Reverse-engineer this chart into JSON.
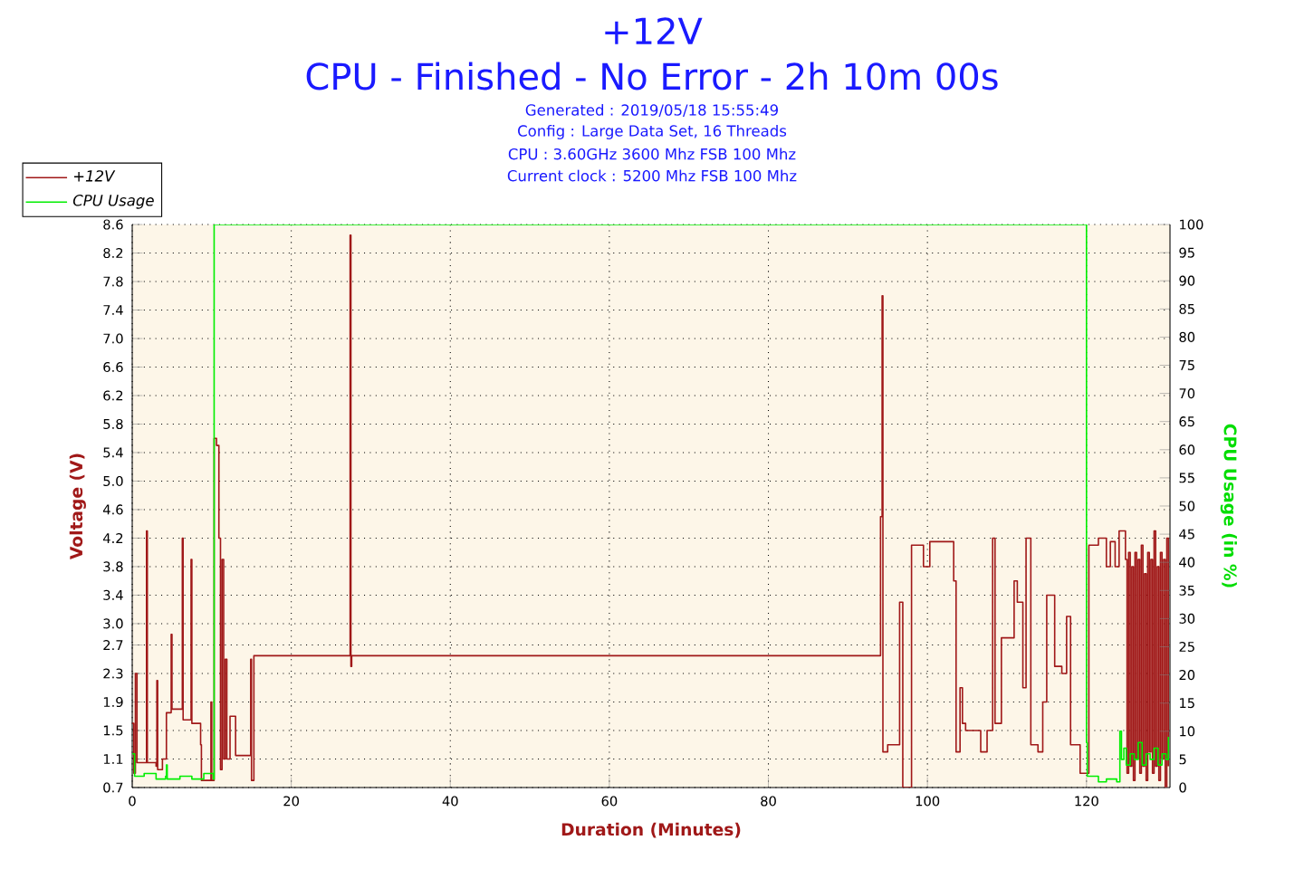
{
  "chart_data": {
    "type": "step",
    "title": "+12V",
    "subtitle": "CPU - Finished - No Error - 2h 10m 00s",
    "annotations": [
      "Generated : 2019/05/18 15:55:49",
      "Config : Large Data Set, 16 Threads",
      "CPU : 3.60GHz 3600 Mhz FSB 100 Mhz",
      "Current clock : 5200 Mhz FSB 100 Mhz"
    ],
    "xlabel": "Duration (Minutes)",
    "ylabel": "Voltage (V)",
    "y2label": "CPU Usage (in %)",
    "xlim": [
      0,
      130.5
    ],
    "xticks": [
      0,
      20,
      40,
      60,
      80,
      100,
      120
    ],
    "ylim": [
      0.7,
      8.6
    ],
    "yticks": [
      0.7,
      1.1,
      1.5,
      1.9,
      2.3,
      2.7,
      {
        "value": 3.0,
        "label": "3.0"
      },
      3.4,
      3.8,
      4.2,
      4.6,
      {
        "value": 5.0,
        "label": "5.0"
      },
      5.4,
      5.8,
      6.2,
      6.6,
      {
        "value": 7.0,
        "label": "7.0"
      },
      7.4,
      7.8,
      8.2,
      8.6
    ],
    "y2lim": [
      0,
      100
    ],
    "y2ticks": [
      0,
      5,
      10,
      15,
      20,
      25,
      30,
      35,
      40,
      45,
      50,
      55,
      60,
      65,
      70,
      75,
      80,
      85,
      90,
      95,
      100
    ],
    "grid": true,
    "legend": "top left",
    "series": [
      {
        "name": "+12V",
        "color": "#a01818",
        "x": [
          0,
          0.2,
          0.4,
          0.6,
          1.8,
          1.9,
          3.0,
          3.1,
          3.2,
          3.8,
          4.3,
          4.9,
          5.0,
          6.3,
          6.4,
          7.4,
          7.5,
          8.6,
          8.7,
          9.9,
          10.0,
          10.3,
          10.6,
          10.9,
          11.1,
          11.3,
          11.5,
          11.7,
          11.9,
          12.3,
          13.0,
          14.9,
          15.0,
          15.3,
          27.4,
          27.5,
          27.6,
          94.1,
          94.3,
          94.4,
          95.0,
          96.5,
          96.9,
          98.0,
          99.5,
          100.3,
          103.3,
          103.6,
          104.1,
          104.4,
          104.8,
          106.7,
          107.5,
          108.2,
          108.5,
          109.3,
          110.9,
          111.3,
          112.0,
          112.4,
          113.0,
          113.9,
          114.5,
          115.0,
          116.0,
          116.9,
          117.5,
          118.0,
          119.2,
          120.3,
          121.5,
          122.5,
          123.0,
          123.6,
          124.1,
          124.9,
          125.1,
          125.3,
          125.5,
          125.7,
          125.9,
          126.1,
          126.3,
          126.5,
          126.7,
          126.9,
          127.1,
          127.3,
          127.5,
          127.7,
          127.9,
          128.1,
          128.3,
          128.5,
          128.7,
          128.9,
          129.1,
          129.3,
          129.5,
          129.7,
          129.9,
          130.1,
          130.3
        ],
        "values": [
          1.6,
          0.9,
          2.3,
          1.05,
          4.3,
          1.05,
          1.0,
          2.2,
          0.95,
          1.1,
          1.75,
          2.85,
          1.8,
          4.2,
          1.65,
          3.9,
          1.6,
          1.3,
          0.8,
          1.9,
          0.8,
          5.6,
          5.5,
          4.2,
          0.95,
          3.9,
          1.1,
          2.5,
          1.1,
          1.7,
          1.15,
          2.5,
          0.8,
          2.55,
          8.45,
          2.4,
          2.55,
          4.5,
          7.6,
          1.2,
          1.3,
          3.3,
          0.7,
          4.1,
          3.8,
          4.15,
          3.6,
          1.2,
          2.1,
          1.6,
          1.5,
          1.2,
          1.5,
          4.2,
          1.6,
          2.8,
          3.6,
          3.3,
          2.1,
          4.2,
          1.3,
          1.2,
          1.9,
          3.4,
          2.4,
          2.3,
          3.1,
          1.3,
          0.9,
          4.1,
          4.2,
          3.8,
          4.15,
          3.8,
          4.3,
          3.9,
          0.9,
          4.0,
          1.0,
          3.8,
          0.8,
          4.0,
          1.1,
          3.9,
          0.9,
          4.1,
          1.0,
          3.7,
          0.8,
          4.0,
          1.2,
          3.9,
          0.9,
          4.3,
          1.0,
          3.8,
          0.8,
          4.0,
          1.1,
          3.9,
          0.7,
          4.2,
          1.0
        ]
      },
      {
        "name": "CPU Usage",
        "color": "#00ee00",
        "axis": "y2",
        "x": [
          0,
          0.3,
          1.5,
          3.0,
          4.2,
          4.3,
          4.4,
          6.0,
          7.5,
          9.0,
          10.2,
          10.3,
          119.9,
          120.0,
          120.1,
          121.5,
          122.5,
          123.8,
          124.2,
          124.4,
          124.7,
          125.0,
          125.5,
          126.0,
          126.5,
          127.0,
          127.5,
          128.0,
          128.5,
          129.0,
          129.5,
          130.0,
          130.3
        ],
        "values": [
          6,
          2,
          2.5,
          1.5,
          2,
          4,
          1.5,
          2,
          1.5,
          2.5,
          1.5,
          100,
          100,
          8,
          2,
          1,
          1.5,
          1,
          10,
          5,
          7,
          4,
          6,
          5,
          8,
          4,
          6,
          5,
          7,
          4,
          6,
          5,
          9
        ]
      }
    ]
  }
}
